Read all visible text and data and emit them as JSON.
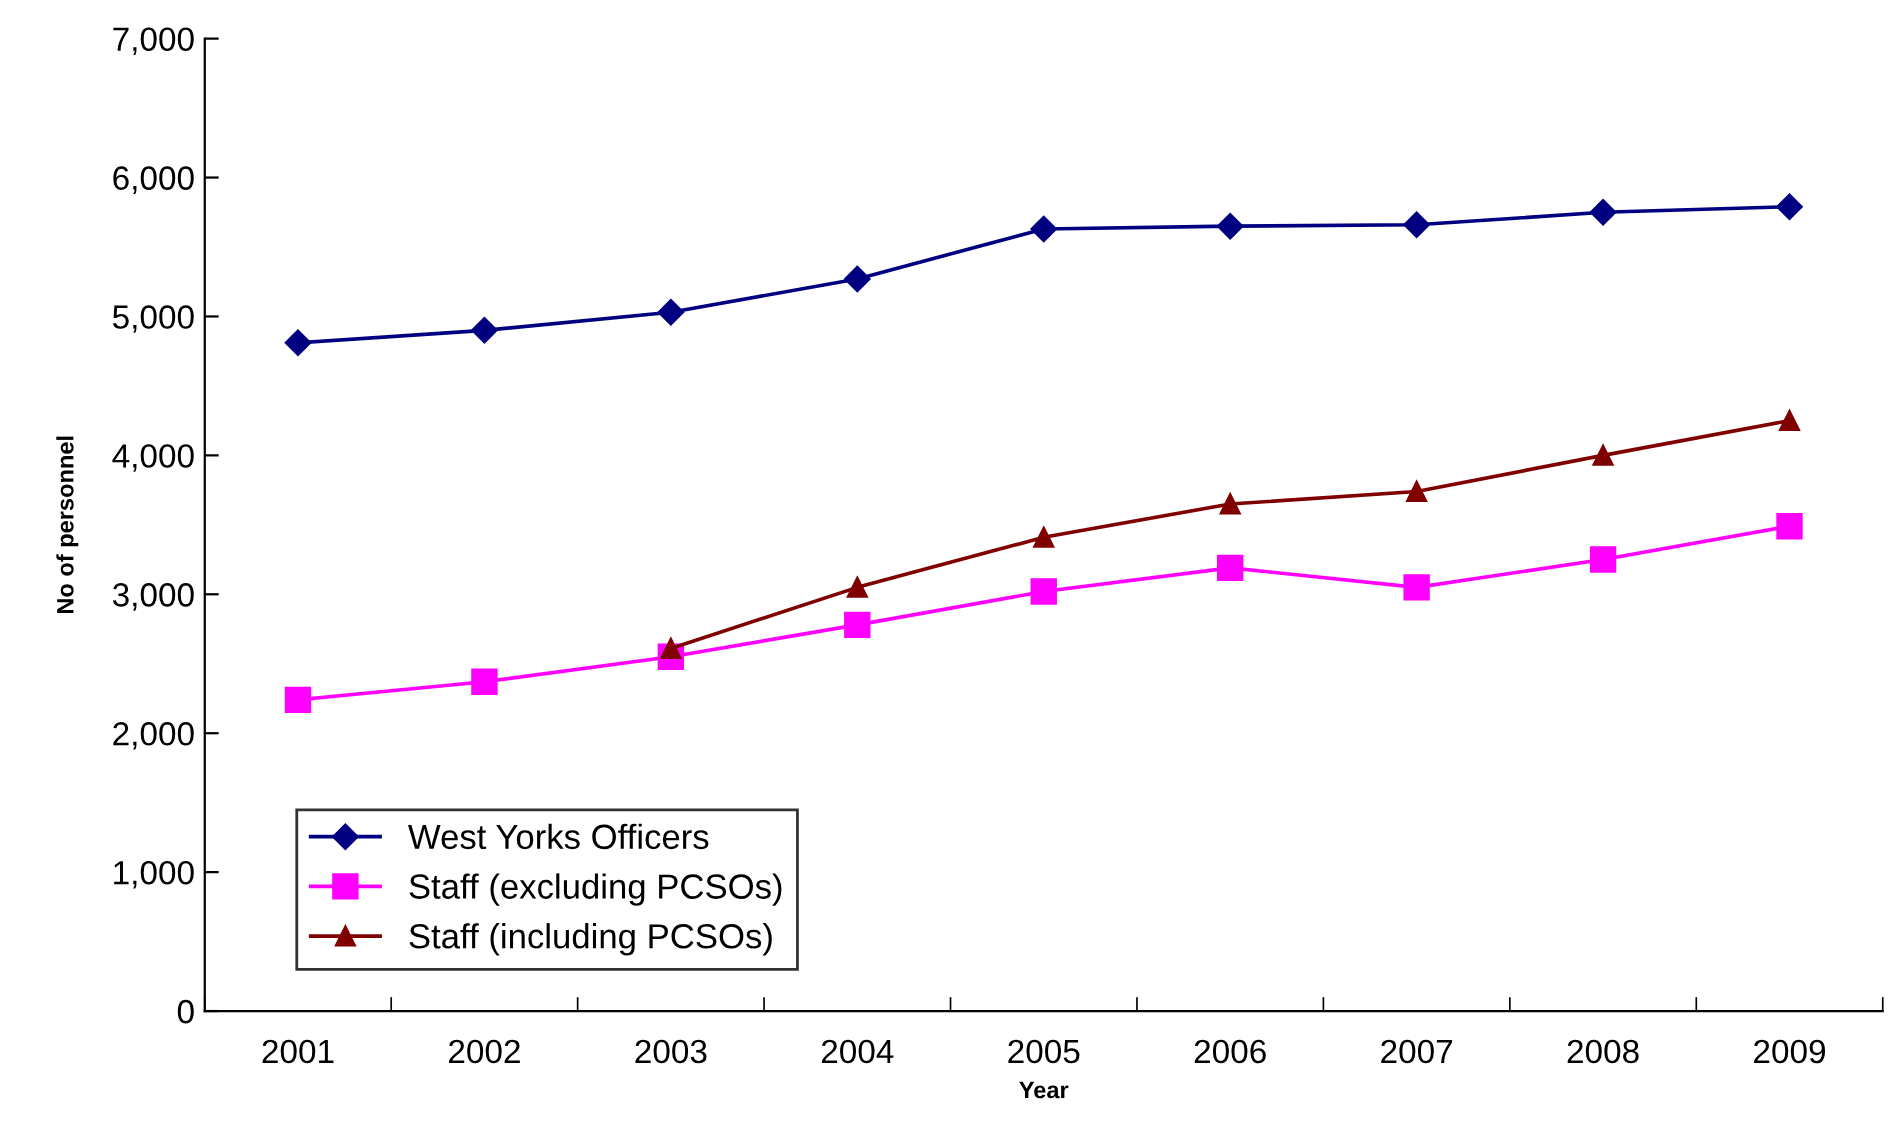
{
  "chart_data": {
    "type": "line",
    "xlabel": "Year",
    "ylabel": "No of personnel",
    "categories": [
      "2001",
      "2002",
      "2003",
      "2004",
      "2005",
      "2006",
      "2007",
      "2008",
      "2009"
    ],
    "series": [
      {
        "name": "West Yorks Officers",
        "color": "#000080",
        "marker": "diamond",
        "values": [
          4810,
          4900,
          5030,
          5270,
          5630,
          5650,
          5660,
          5750,
          5790
        ]
      },
      {
        "name": "Staff (excluding PCSOs)",
        "color": "#ff00ff",
        "marker": "square",
        "values": [
          2240,
          2370,
          2550,
          2780,
          3020,
          3190,
          3050,
          3250,
          3490
        ]
      },
      {
        "name": "Staff (including PCSOs)",
        "color": "#800000",
        "marker": "triangle",
        "values": [
          null,
          null,
          2610,
          3050,
          3410,
          3650,
          3740,
          4000,
          4250
        ]
      }
    ],
    "ylim": [
      0,
      7000
    ],
    "yticks": [
      {
        "value": 0,
        "label": "0"
      },
      {
        "value": 1000,
        "label": "1,000"
      },
      {
        "value": 2000,
        "label": "2,000"
      },
      {
        "value": 3000,
        "label": "3,000"
      },
      {
        "value": 4000,
        "label": "4,000"
      },
      {
        "value": 5000,
        "label": "5,000"
      },
      {
        "value": 6000,
        "label": "6,000"
      },
      {
        "value": 7000,
        "label": "7,000"
      }
    ],
    "grid": false,
    "legend": "bottom left",
    "line_style": "solid"
  }
}
